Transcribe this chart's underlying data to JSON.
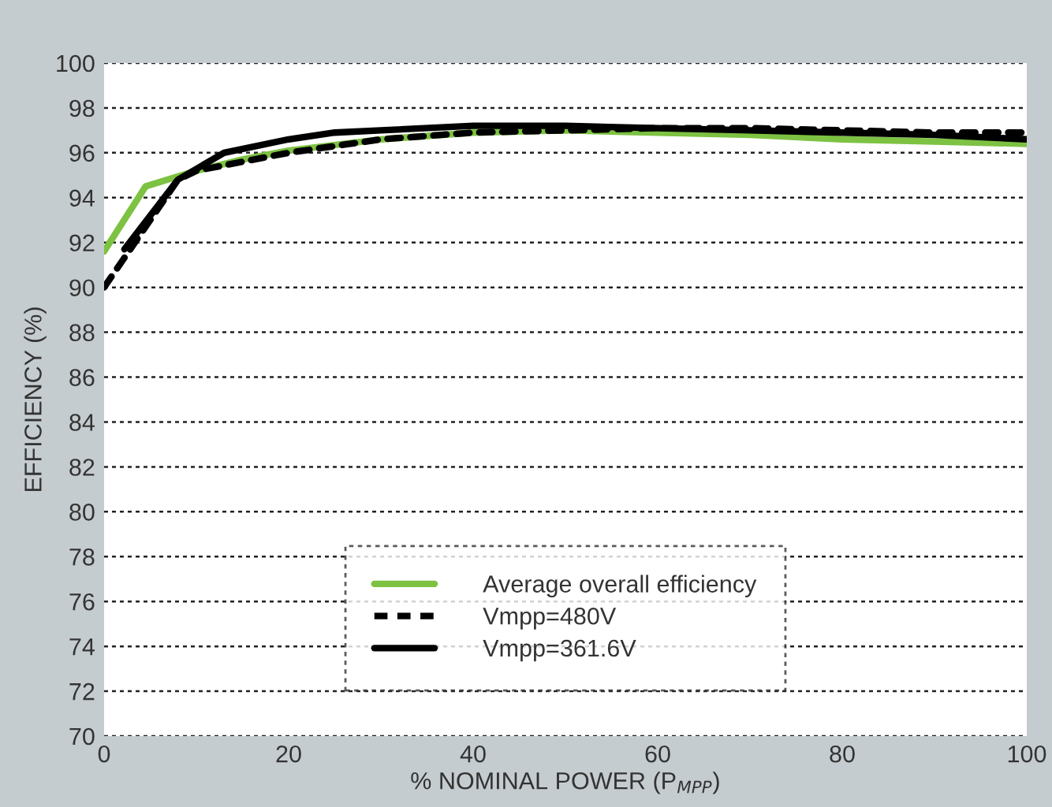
{
  "chart_data": {
    "type": "line",
    "xlabel": "% NOMINAL POWER (P$_{MPP}$)",
    "ylabel": "EFFICIENCY (%)",
    "series": [
      {
        "name": "Average overall efficiency",
        "color": "#7dc242",
        "line_style": "solid",
        "x": [
          0,
          4.5,
          10,
          15,
          20,
          30,
          40,
          50,
          60,
          70,
          80,
          90,
          100
        ],
        "values": [
          91.6,
          94.5,
          95.2,
          95.7,
          96.1,
          96.6,
          96.9,
          97.0,
          96.9,
          96.8,
          96.6,
          96.5,
          96.4
        ]
      },
      {
        "name": "Vmpp=480V",
        "color": "#000000",
        "line_style": "dashed",
        "x": [
          0,
          2,
          5,
          8,
          10,
          15,
          20,
          30,
          40,
          50,
          60,
          70,
          80,
          90,
          100
        ],
        "values": [
          90.0,
          91.2,
          93.0,
          94.8,
          95.2,
          95.6,
          96.0,
          96.6,
          96.9,
          97.0,
          97.1,
          97.1,
          97.0,
          96.9,
          96.9
        ]
      },
      {
        "name": "Vmpp=361.6V",
        "color": "#000000",
        "line_style": "solid",
        "x": [
          2.2,
          8,
          13,
          20,
          25,
          30,
          40,
          50,
          60,
          70,
          80,
          90,
          100
        ],
        "values": [
          91.7,
          94.8,
          96.0,
          96.6,
          96.9,
          97.0,
          97.2,
          97.2,
          97.1,
          97.0,
          96.9,
          96.8,
          96.6
        ]
      }
    ],
    "xlim": [
      0,
      100
    ],
    "xticks": [
      0,
      20,
      40,
      60,
      80,
      100
    ],
    "ylim": [
      70,
      100
    ],
    "yticks": [
      70,
      72,
      74,
      76,
      78,
      80,
      82,
      84,
      86,
      88,
      90,
      92,
      94,
      96,
      98,
      100
    ],
    "grid": "y",
    "legend": "bottom",
    "marker": "none"
  }
}
